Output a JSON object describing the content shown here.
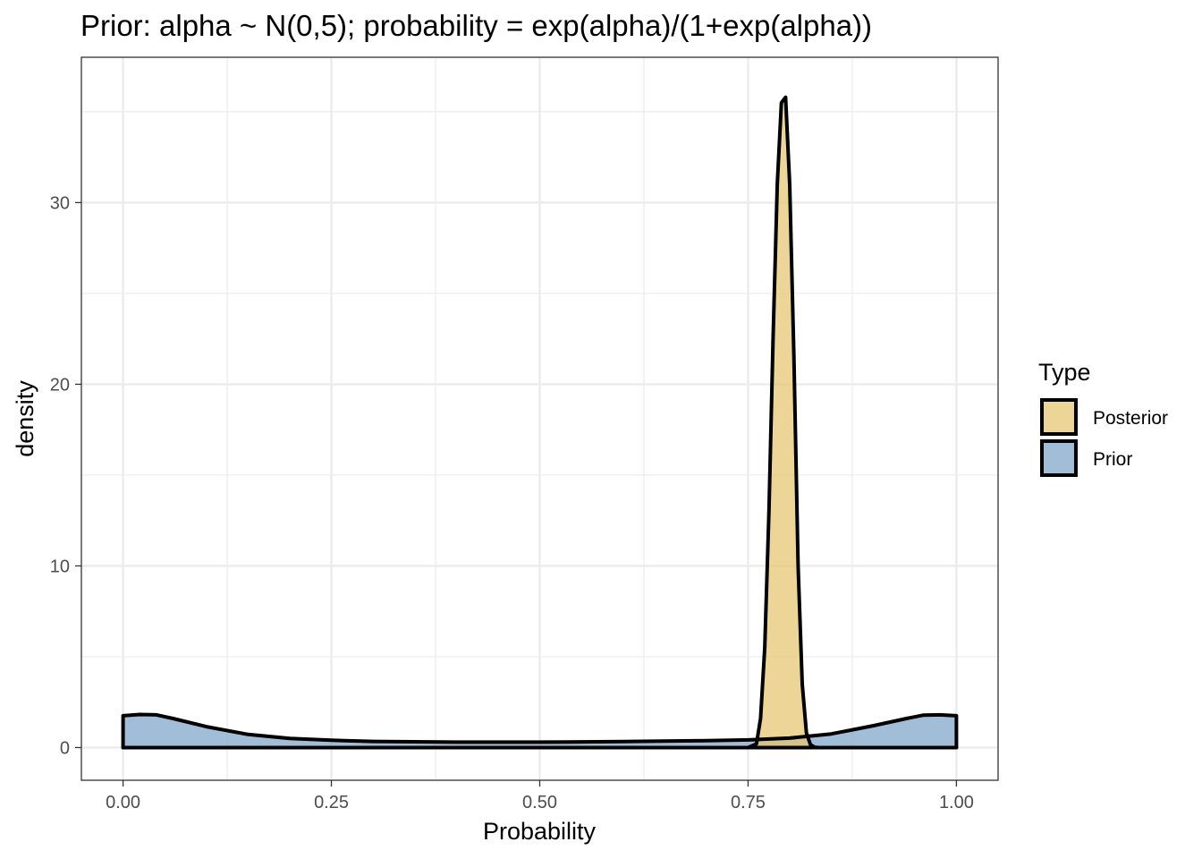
{
  "chart_data": {
    "type": "area",
    "title": "Prior: alpha ~ N(0,5); probability = exp(alpha)/(1+exp(alpha))",
    "xlabel": "Probability",
    "ylabel": "density",
    "xlim": [
      -0.05,
      1.05
    ],
    "ylim": [
      -1.8,
      38.0
    ],
    "grid": true,
    "legend_position": "right",
    "legend": {
      "title": "Type",
      "entries": [
        "Posterior",
        "Prior"
      ]
    },
    "x_ticks": [
      {
        "value": 0.0,
        "label": "0.00"
      },
      {
        "value": 0.25,
        "label": "0.25"
      },
      {
        "value": 0.5,
        "label": "0.50"
      },
      {
        "value": 0.75,
        "label": "0.75"
      },
      {
        "value": 1.0,
        "label": "1.00"
      }
    ],
    "y_ticks": [
      {
        "value": 0,
        "label": "0"
      },
      {
        "value": 10,
        "label": "10"
      },
      {
        "value": 20,
        "label": "20"
      },
      {
        "value": 30,
        "label": "30"
      }
    ],
    "series": [
      {
        "name": "Posterior",
        "color": "#e6c570",
        "x": [
          0.0,
          0.75,
          0.76,
          0.765,
          0.77,
          0.775,
          0.78,
          0.785,
          0.79,
          0.795,
          0.8,
          0.805,
          0.81,
          0.815,
          0.82,
          0.825,
          0.83,
          0.835,
          1.0
        ],
        "y": [
          0,
          0,
          0.2,
          1.6,
          5.5,
          13.0,
          22.5,
          31.0,
          35.5,
          35.8,
          31.0,
          21.5,
          10.0,
          3.5,
          0.8,
          0.15,
          0.02,
          0,
          0
        ]
      },
      {
        "name": "Prior",
        "color": "#7ea3c8",
        "x": [
          0.0,
          0.02,
          0.04,
          0.06,
          0.1,
          0.15,
          0.2,
          0.25,
          0.3,
          0.4,
          0.5,
          0.6,
          0.7,
          0.75,
          0.8,
          0.85,
          0.9,
          0.94,
          0.96,
          0.98,
          1.0
        ],
        "y": [
          1.75,
          1.82,
          1.8,
          1.6,
          1.15,
          0.72,
          0.5,
          0.4,
          0.34,
          0.3,
          0.3,
          0.33,
          0.38,
          0.42,
          0.52,
          0.75,
          1.2,
          1.6,
          1.78,
          1.8,
          1.75
        ]
      }
    ]
  }
}
